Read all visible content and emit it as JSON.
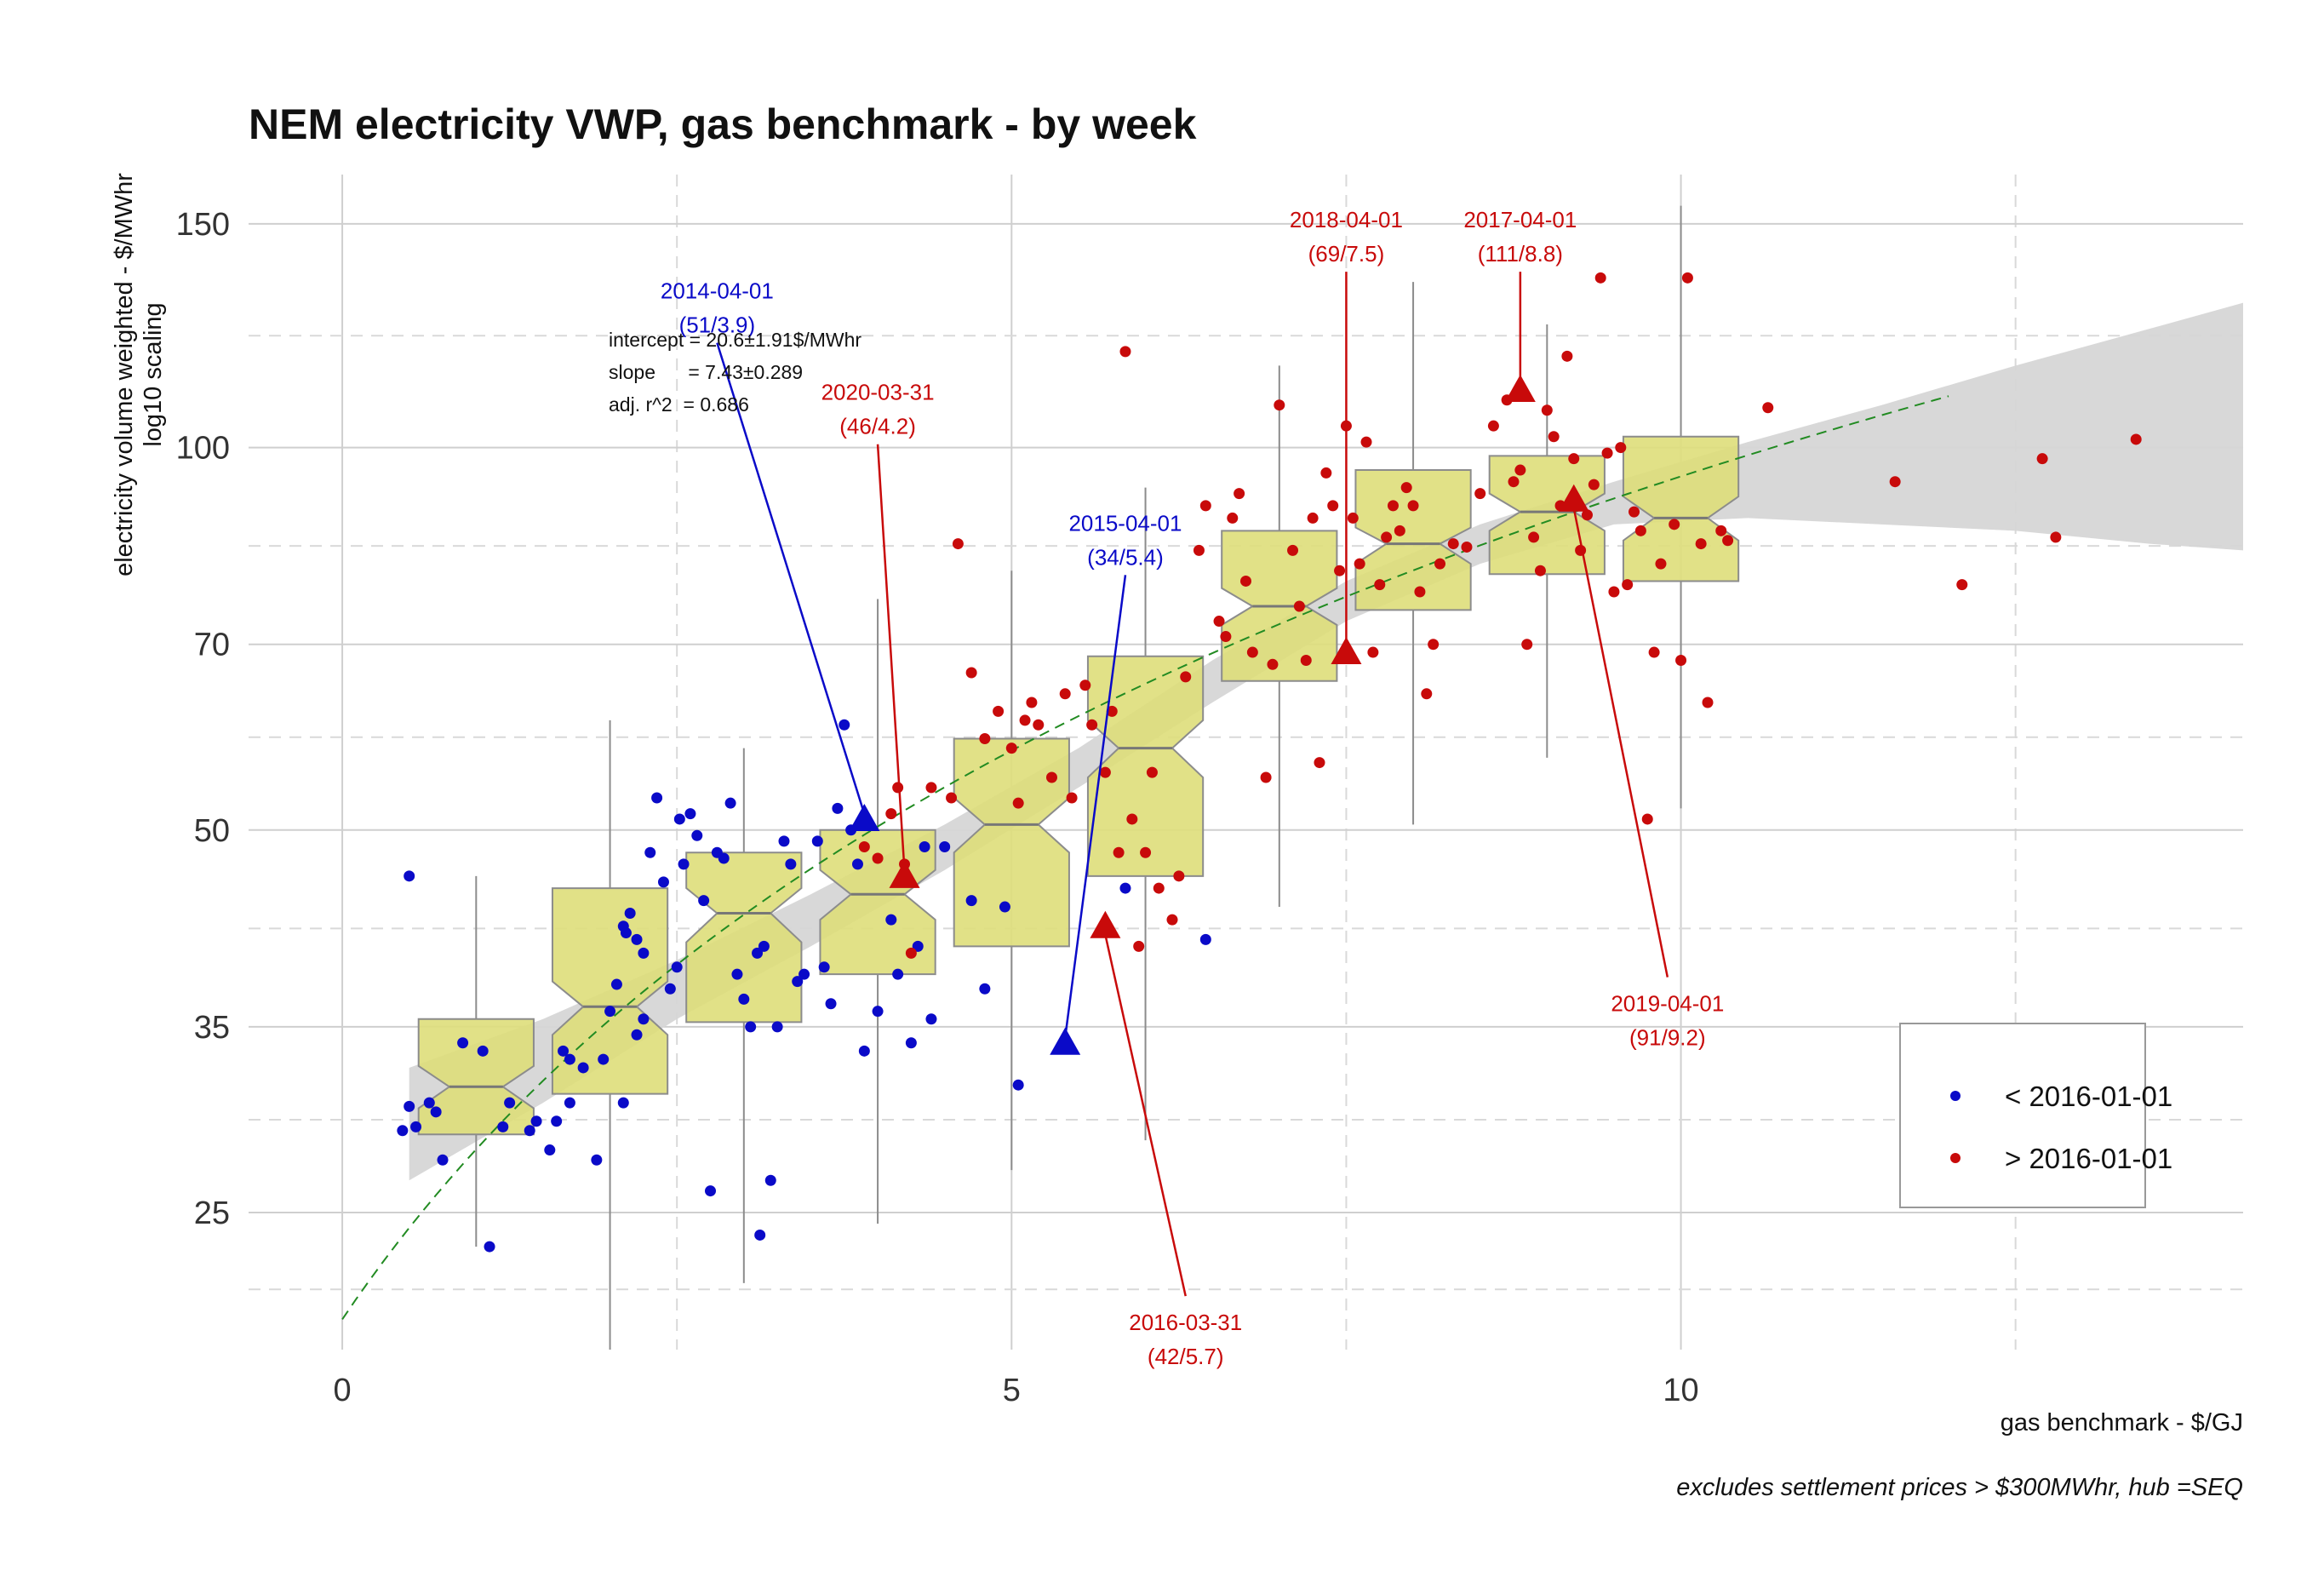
{
  "chart_data": {
    "type": "scatter",
    "title": "NEM electricity VWP, gas benchmark - by week",
    "xlabel": "gas benchmark - $/GJ",
    "ylabel": "electricity volume weighted - $/MWhr",
    "ylabel_sub": "log10 scaling",
    "caption": "excludes settlement prices > $300MWhr, hub =SEQ",
    "xlim": [
      -0.7,
      14.2
    ],
    "ylim": [
      19.5,
      164
    ],
    "y_scale": "log10",
    "x_ticks": [
      0,
      5,
      10
    ],
    "y_ticks": [
      25,
      35,
      50,
      70,
      100,
      150
    ],
    "grid": true,
    "legend_position": "bottom-right",
    "colors": {
      "before": "#0a0ac8",
      "after": "#c80a0a",
      "box_fill": "#dede7a",
      "box_stroke": "#8c8c8c",
      "band": "#d6d6d6",
      "fit": "#228b22"
    },
    "legend": [
      {
        "label": "< 2016-01-01",
        "color": "#0a0ac8"
      },
      {
        "label": "> 2016-01-01",
        "color": "#c80a0a"
      }
    ],
    "regression": {
      "intercept_label": "intercept = 20.6±1.91$/MWhr",
      "slope_label": "slope      = 7.43±0.289",
      "r2_label": "adj. r^2  = 0.686",
      "intercept": 20.6,
      "slope": 7.43,
      "x_range": [
        0,
        12
      ]
    },
    "smooth_band": [
      {
        "x": 0.5,
        "lo": 26.5,
        "hi": 32.5,
        "mid": 29.5
      },
      {
        "x": 1.5,
        "lo": 30.5,
        "hi": 35.5,
        "mid": 33
      },
      {
        "x": 2.5,
        "lo": 35.5,
        "hi": 39.5,
        "mid": 37.5
      },
      {
        "x": 3.5,
        "lo": 40.5,
        "hi": 44.5,
        "mid": 42.5
      },
      {
        "x": 4.5,
        "lo": 46.5,
        "hi": 50.5,
        "mid": 48.5
      },
      {
        "x": 5.5,
        "lo": 54,
        "hi": 58,
        "mid": 56
      },
      {
        "x": 6.5,
        "lo": 63,
        "hi": 68,
        "mid": 65.5
      },
      {
        "x": 7.5,
        "lo": 73,
        "hi": 78.5,
        "mid": 75.5
      },
      {
        "x": 8.5,
        "lo": 81,
        "hi": 87,
        "mid": 84
      },
      {
        "x": 9.5,
        "lo": 87,
        "hi": 94,
        "mid": 90.5
      },
      {
        "x": 10.5,
        "lo": 88,
        "hi": 101,
        "mid": 94.5
      },
      {
        "x": 11.5,
        "lo": 87,
        "hi": 108,
        "mid": 97
      },
      {
        "x": 12.5,
        "lo": 86,
        "hi": 116,
        "mid": 100
      },
      {
        "x": 13.5,
        "lo": 84,
        "hi": 124,
        "mid": 102
      },
      {
        "x": 14.2,
        "lo": 83,
        "hi": 130,
        "mid": 103.5
      }
    ],
    "boxes": [
      {
        "x": 1.0,
        "q1": 28.8,
        "median": 31.4,
        "q3": 35.5,
        "lo": 23.5,
        "hi": 46.0,
        "notch": [
          30.2,
          32.6
        ]
      },
      {
        "x": 2.0,
        "q1": 31.0,
        "median": 36.3,
        "q3": 45.0,
        "lo": 19.5,
        "hi": 61.0,
        "notch": [
          34.5,
          38.0
        ]
      },
      {
        "x": 3.0,
        "q1": 35.3,
        "median": 43.0,
        "q3": 48.0,
        "lo": 22.0,
        "hi": 58.0,
        "notch": [
          40.8,
          45.0
        ]
      },
      {
        "x": 4.0,
        "q1": 38.5,
        "median": 44.5,
        "q3": 50.0,
        "lo": 24.5,
        "hi": 76.0,
        "notch": [
          42.5,
          46.5
        ]
      },
      {
        "x": 5.0,
        "q1": 40.5,
        "median": 50.5,
        "q3": 59.0,
        "lo": 27.0,
        "hi": 80.0,
        "notch": [
          48.0,
          53.0
        ]
      },
      {
        "x": 6.0,
        "q1": 46.0,
        "median": 58.0,
        "q3": 68.5,
        "lo": 28.5,
        "hi": 93.0,
        "notch": [
          55.0,
          61.0
        ]
      },
      {
        "x": 7.0,
        "q1": 65.5,
        "median": 75.0,
        "q3": 86.0,
        "lo": 43.5,
        "hi": 116.0,
        "notch": [
          72.5,
          77.5
        ]
      },
      {
        "x": 8.0,
        "q1": 74.5,
        "median": 84.0,
        "q3": 96.0,
        "lo": 50.5,
        "hi": 135.0,
        "notch": [
          81.0,
          86.5
        ]
      },
      {
        "x": 9.0,
        "q1": 79.5,
        "median": 89.0,
        "q3": 98.5,
        "lo": 57.0,
        "hi": 125.0,
        "notch": [
          86.0,
          92.0
        ]
      },
      {
        "x": 10.0,
        "q1": 78.5,
        "median": 88.0,
        "q3": 102.0,
        "lo": 52.0,
        "hi": 155.0,
        "notch": [
          84.5,
          91.5
        ]
      }
    ],
    "points_before": [
      [
        0.5,
        46
      ],
      [
        0.5,
        30.3
      ],
      [
        0.55,
        29.2
      ],
      [
        0.45,
        29
      ],
      [
        0.65,
        30.5
      ],
      [
        0.7,
        30
      ],
      [
        0.75,
        27.5
      ],
      [
        0.9,
        34
      ],
      [
        1.05,
        33.5
      ],
      [
        1.1,
        23.5
      ],
      [
        1.2,
        29.2
      ],
      [
        1.25,
        30.5
      ],
      [
        1.4,
        29
      ],
      [
        1.45,
        29.5
      ],
      [
        1.55,
        28
      ],
      [
        1.6,
        29.5
      ],
      [
        1.65,
        33.5
      ],
      [
        1.7,
        30.5
      ],
      [
        1.7,
        33
      ],
      [
        1.8,
        32.5
      ],
      [
        1.9,
        27.5
      ],
      [
        1.95,
        33
      ],
      [
        2.0,
        36
      ],
      [
        2.05,
        37.8
      ],
      [
        2.1,
        30.5
      ],
      [
        2.1,
        42
      ],
      [
        2.12,
        41.5
      ],
      [
        2.15,
        43
      ],
      [
        2.2,
        41
      ],
      [
        2.2,
        34.5
      ],
      [
        2.25,
        40
      ],
      [
        2.25,
        35.5
      ],
      [
        2.3,
        48
      ],
      [
        2.35,
        53
      ],
      [
        2.4,
        45.5
      ],
      [
        2.45,
        37.5
      ],
      [
        2.5,
        39
      ],
      [
        2.52,
        51
      ],
      [
        2.55,
        47
      ],
      [
        2.6,
        51.5
      ],
      [
        2.65,
        49.5
      ],
      [
        2.7,
        44
      ],
      [
        2.75,
        26
      ],
      [
        2.8,
        48
      ],
      [
        2.85,
        47.5
      ],
      [
        2.9,
        52.5
      ],
      [
        2.95,
        38.5
      ],
      [
        3.0,
        36.8
      ],
      [
        3.05,
        35
      ],
      [
        3.1,
        40
      ],
      [
        3.12,
        24
      ],
      [
        3.15,
        40.5
      ],
      [
        3.2,
        26.5
      ],
      [
        3.25,
        35
      ],
      [
        3.3,
        49
      ],
      [
        3.35,
        47
      ],
      [
        3.4,
        38
      ],
      [
        3.45,
        38.5
      ],
      [
        3.55,
        49
      ],
      [
        3.6,
        39
      ],
      [
        3.65,
        36.5
      ],
      [
        3.7,
        52
      ],
      [
        3.75,
        60.5
      ],
      [
        3.8,
        50
      ],
      [
        3.85,
        47
      ],
      [
        3.9,
        33.5
      ],
      [
        4.0,
        36
      ],
      [
        4.1,
        42.5
      ],
      [
        4.15,
        38.5
      ],
      [
        4.2,
        46
      ],
      [
        4.25,
        34
      ],
      [
        4.3,
        40.5
      ],
      [
        4.35,
        48.5
      ],
      [
        4.4,
        35.5
      ],
      [
        4.5,
        48.5
      ],
      [
        4.7,
        44
      ],
      [
        4.8,
        37.5
      ],
      [
        4.95,
        43.5
      ],
      [
        5.05,
        31.5
      ],
      [
        5.85,
        45
      ],
      [
        6.45,
        41
      ]
    ],
    "points_after": [
      [
        3.9,
        48.5
      ],
      [
        4.0,
        47.5
      ],
      [
        4.1,
        51.5
      ],
      [
        4.15,
        54
      ],
      [
        4.2,
        47
      ],
      [
        4.25,
        40
      ],
      [
        4.4,
        54
      ],
      [
        4.55,
        53
      ],
      [
        4.6,
        84
      ],
      [
        4.7,
        66.5
      ],
      [
        4.8,
        59
      ],
      [
        4.9,
        62
      ],
      [
        5.0,
        58
      ],
      [
        5.05,
        52.5
      ],
      [
        5.1,
        61
      ],
      [
        5.15,
        63
      ],
      [
        5.2,
        60.5
      ],
      [
        5.3,
        55
      ],
      [
        5.4,
        64
      ],
      [
        5.45,
        53
      ],
      [
        5.55,
        65
      ],
      [
        5.6,
        60.5
      ],
      [
        5.7,
        55.5
      ],
      [
        5.75,
        62
      ],
      [
        5.8,
        48
      ],
      [
        5.85,
        119
      ],
      [
        5.9,
        51
      ],
      [
        5.95,
        40.5
      ],
      [
        6.0,
        48
      ],
      [
        6.05,
        55.5
      ],
      [
        6.1,
        45
      ],
      [
        6.2,
        42.5
      ],
      [
        6.25,
        46
      ],
      [
        6.3,
        66
      ],
      [
        6.4,
        83
      ],
      [
        6.45,
        90
      ],
      [
        6.55,
        73
      ],
      [
        6.6,
        71
      ],
      [
        6.65,
        88
      ],
      [
        6.7,
        92
      ],
      [
        6.75,
        78.5
      ],
      [
        6.8,
        69
      ],
      [
        6.9,
        55
      ],
      [
        6.95,
        67.5
      ],
      [
        7.0,
        108
      ],
      [
        7.1,
        83
      ],
      [
        7.15,
        75
      ],
      [
        7.2,
        68
      ],
      [
        7.25,
        88
      ],
      [
        7.3,
        56.5
      ],
      [
        7.35,
        95.5
      ],
      [
        7.4,
        90
      ],
      [
        7.45,
        80
      ],
      [
        7.5,
        104
      ],
      [
        7.55,
        88
      ],
      [
        7.6,
        81
      ],
      [
        7.65,
        101
      ],
      [
        7.7,
        69
      ],
      [
        7.75,
        78
      ],
      [
        7.8,
        85
      ],
      [
        7.85,
        90
      ],
      [
        7.9,
        86
      ],
      [
        7.95,
        93
      ],
      [
        8.0,
        90
      ],
      [
        8.05,
        77
      ],
      [
        8.1,
        64
      ],
      [
        8.15,
        70
      ],
      [
        8.2,
        81
      ],
      [
        8.3,
        84
      ],
      [
        8.4,
        83.5
      ],
      [
        8.5,
        92
      ],
      [
        8.6,
        104
      ],
      [
        8.7,
        109
      ],
      [
        8.75,
        94
      ],
      [
        8.8,
        96
      ],
      [
        8.85,
        70
      ],
      [
        8.9,
        85
      ],
      [
        8.95,
        80
      ],
      [
        9.0,
        107
      ],
      [
        9.05,
        102
      ],
      [
        9.1,
        90
      ],
      [
        9.15,
        118
      ],
      [
        9.2,
        98
      ],
      [
        9.25,
        83
      ],
      [
        9.3,
        88.5
      ],
      [
        9.35,
        93.5
      ],
      [
        9.4,
        136
      ],
      [
        9.45,
        99
      ],
      [
        9.5,
        77
      ],
      [
        9.55,
        100
      ],
      [
        9.6,
        78
      ],
      [
        9.65,
        89
      ],
      [
        9.7,
        86
      ],
      [
        9.75,
        51
      ],
      [
        9.8,
        69
      ],
      [
        9.85,
        81
      ],
      [
        9.95,
        87
      ],
      [
        10.0,
        68
      ],
      [
        10.05,
        136
      ],
      [
        10.15,
        84
      ],
      [
        10.2,
        63
      ],
      [
        10.3,
        86
      ],
      [
        10.35,
        84.5
      ],
      [
        10.65,
        107.5
      ],
      [
        11.6,
        94
      ],
      [
        12.1,
        78
      ],
      [
        12.7,
        98
      ],
      [
        12.8,
        85
      ],
      [
        13.4,
        101.5
      ]
    ],
    "annotations": [
      {
        "label": "2014-04-01",
        "sublabel": "(51/3.9)",
        "x": 3.9,
        "y": 51,
        "color": "#0a0ac8",
        "label_x": 2.8,
        "label_y": 131
      },
      {
        "label": "2015-04-01",
        "sublabel": "(34/5.4)",
        "x": 5.4,
        "y": 34,
        "color": "#0a0ac8",
        "label_x": 5.85,
        "label_y": 86
      },
      {
        "label": "2016-03-31",
        "sublabel": "(42/5.7)",
        "x": 5.7,
        "y": 42,
        "color": "#c80a0a",
        "label_x": 6.3,
        "label_y": 20.2
      },
      {
        "label": "2017-04-01",
        "sublabel": "(111/8.8)",
        "x": 8.8,
        "y": 111,
        "color": "#c80a0a",
        "label_x": 8.8,
        "label_y": 149
      },
      {
        "label": "2018-04-01",
        "sublabel": "(69/7.5)",
        "x": 7.5,
        "y": 69,
        "color": "#c80a0a",
        "label_x": 7.5,
        "label_y": 149
      },
      {
        "label": "2019-04-01",
        "sublabel": "(91/9.2)",
        "x": 9.2,
        "y": 91,
        "color": "#c80a0a",
        "label_x": 9.9,
        "label_y": 36
      },
      {
        "label": "2020-03-31",
        "sublabel": "(46/4.2)",
        "x": 4.2,
        "y": 46,
        "color": "#c80a0a",
        "label_x": 4.0,
        "label_y": 109
      }
    ]
  }
}
